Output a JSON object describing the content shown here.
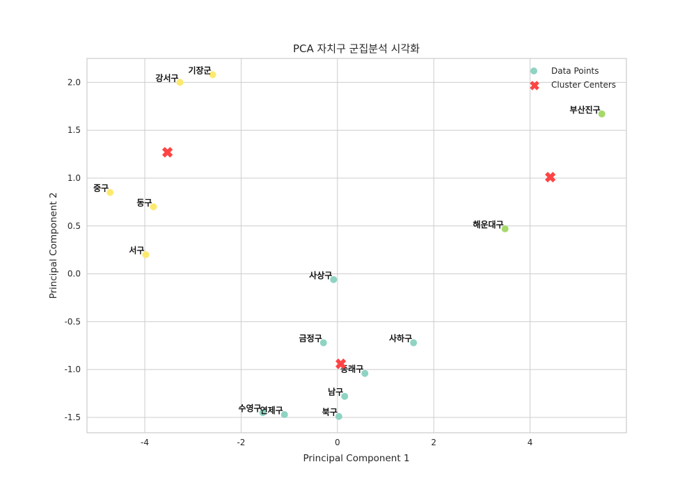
{
  "chart_data": {
    "type": "scatter",
    "title": "PCA 자치구 군집분석 시각화",
    "xlabel": "Principal Component 1",
    "ylabel": "Principal Component 2",
    "xlim": [
      -5.2,
      6.0
    ],
    "ylim": [
      -1.66,
      2.25
    ],
    "xticks": [
      -4,
      -2,
      0,
      2,
      4
    ],
    "xtick_labels": [
      "-4",
      "-2",
      "0",
      "2",
      "4"
    ],
    "yticks": [
      -1.5,
      -1.0,
      -0.5,
      0.0,
      0.5,
      1.0,
      1.5,
      2.0
    ],
    "ytick_labels": [
      "-1.5",
      "-1.0",
      "-0.5",
      "0.0",
      "0.5",
      "1.0",
      "1.5",
      "2.0"
    ],
    "grid": true,
    "legend_position": "top-right",
    "legend": [
      "Data Points",
      "Cluster Centers"
    ],
    "cluster_colors": [
      "#8fd3c3",
      "#fde96f",
      "#a6d96a"
    ],
    "center_color": "#ff4444",
    "points": [
      {
        "label": "강서구",
        "x": -3.27,
        "y": 2.0,
        "cluster": 1
      },
      {
        "label": "기장군",
        "x": -2.59,
        "y": 2.08,
        "cluster": 1
      },
      {
        "label": "중구",
        "x": -4.72,
        "y": 0.85,
        "cluster": 1
      },
      {
        "label": "동구",
        "x": -3.82,
        "y": 0.7,
        "cluster": 1
      },
      {
        "label": "서구",
        "x": -3.98,
        "y": 0.2,
        "cluster": 1
      },
      {
        "label": "부산진구",
        "x": 5.49,
        "y": 1.67,
        "cluster": 2
      },
      {
        "label": "해운대구",
        "x": 3.48,
        "y": 0.47,
        "cluster": 2
      },
      {
        "label": "사상구",
        "x": -0.08,
        "y": -0.06,
        "cluster": 0
      },
      {
        "label": "금정구",
        "x": -0.29,
        "y": -0.72,
        "cluster": 0
      },
      {
        "label": "사하구",
        "x": 1.58,
        "y": -0.72,
        "cluster": 0
      },
      {
        "label": "동래구",
        "x": 0.57,
        "y": -1.04,
        "cluster": 0
      },
      {
        "label": "남구",
        "x": 0.15,
        "y": -1.28,
        "cluster": 0
      },
      {
        "label": "연제구",
        "x": -1.1,
        "y": -1.47,
        "cluster": 0
      },
      {
        "label": "수영구",
        "x": -1.55,
        "y": -1.45,
        "cluster": 0
      },
      {
        "label": "북구",
        "x": 0.03,
        "y": -1.49,
        "cluster": 0
      }
    ],
    "centers": [
      {
        "x": -3.53,
        "y": 1.27
      },
      {
        "x": 4.42,
        "y": 1.01
      },
      {
        "x": 0.07,
        "y": -0.94
      }
    ]
  }
}
